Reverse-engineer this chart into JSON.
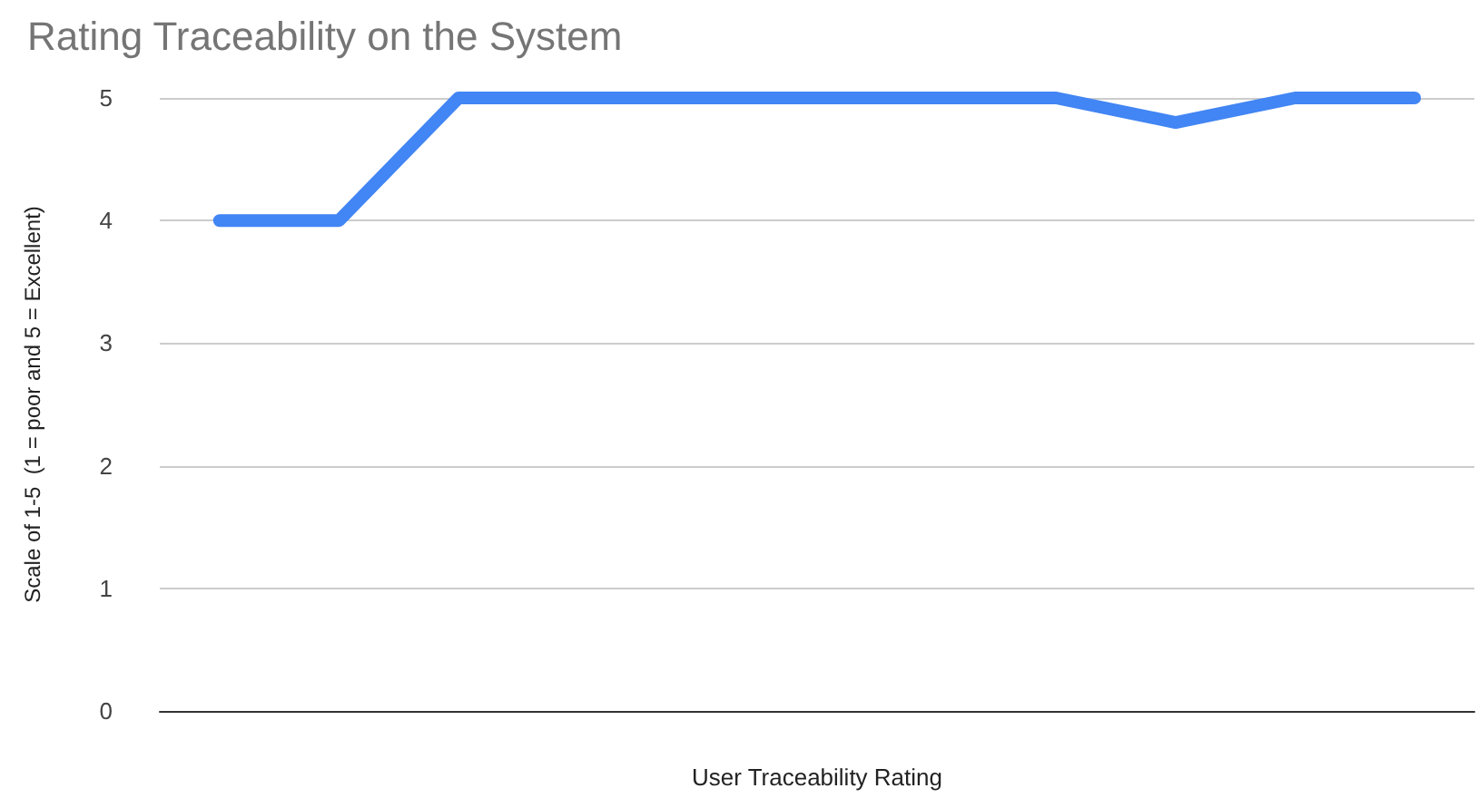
{
  "chart_data": {
    "type": "line",
    "title": "Rating Traceability on the System",
    "xlabel": "User Traceability Rating",
    "ylabel": "Scale of 1-5  (1 = poor and 5 = Excellent)",
    "categories": [
      null,
      null,
      null,
      null,
      null,
      null,
      null,
      null,
      null,
      null,
      null
    ],
    "series": [
      {
        "color": "#4285f4",
        "values": [
          4,
          4,
          5,
          5,
          5,
          5,
          5,
          5,
          4.8,
          5,
          5
        ]
      }
    ],
    "ylim": [
      0,
      5
    ],
    "yticks": [
      0,
      1,
      2,
      3,
      4,
      5
    ],
    "grid": "y",
    "line_style": "solid"
  }
}
